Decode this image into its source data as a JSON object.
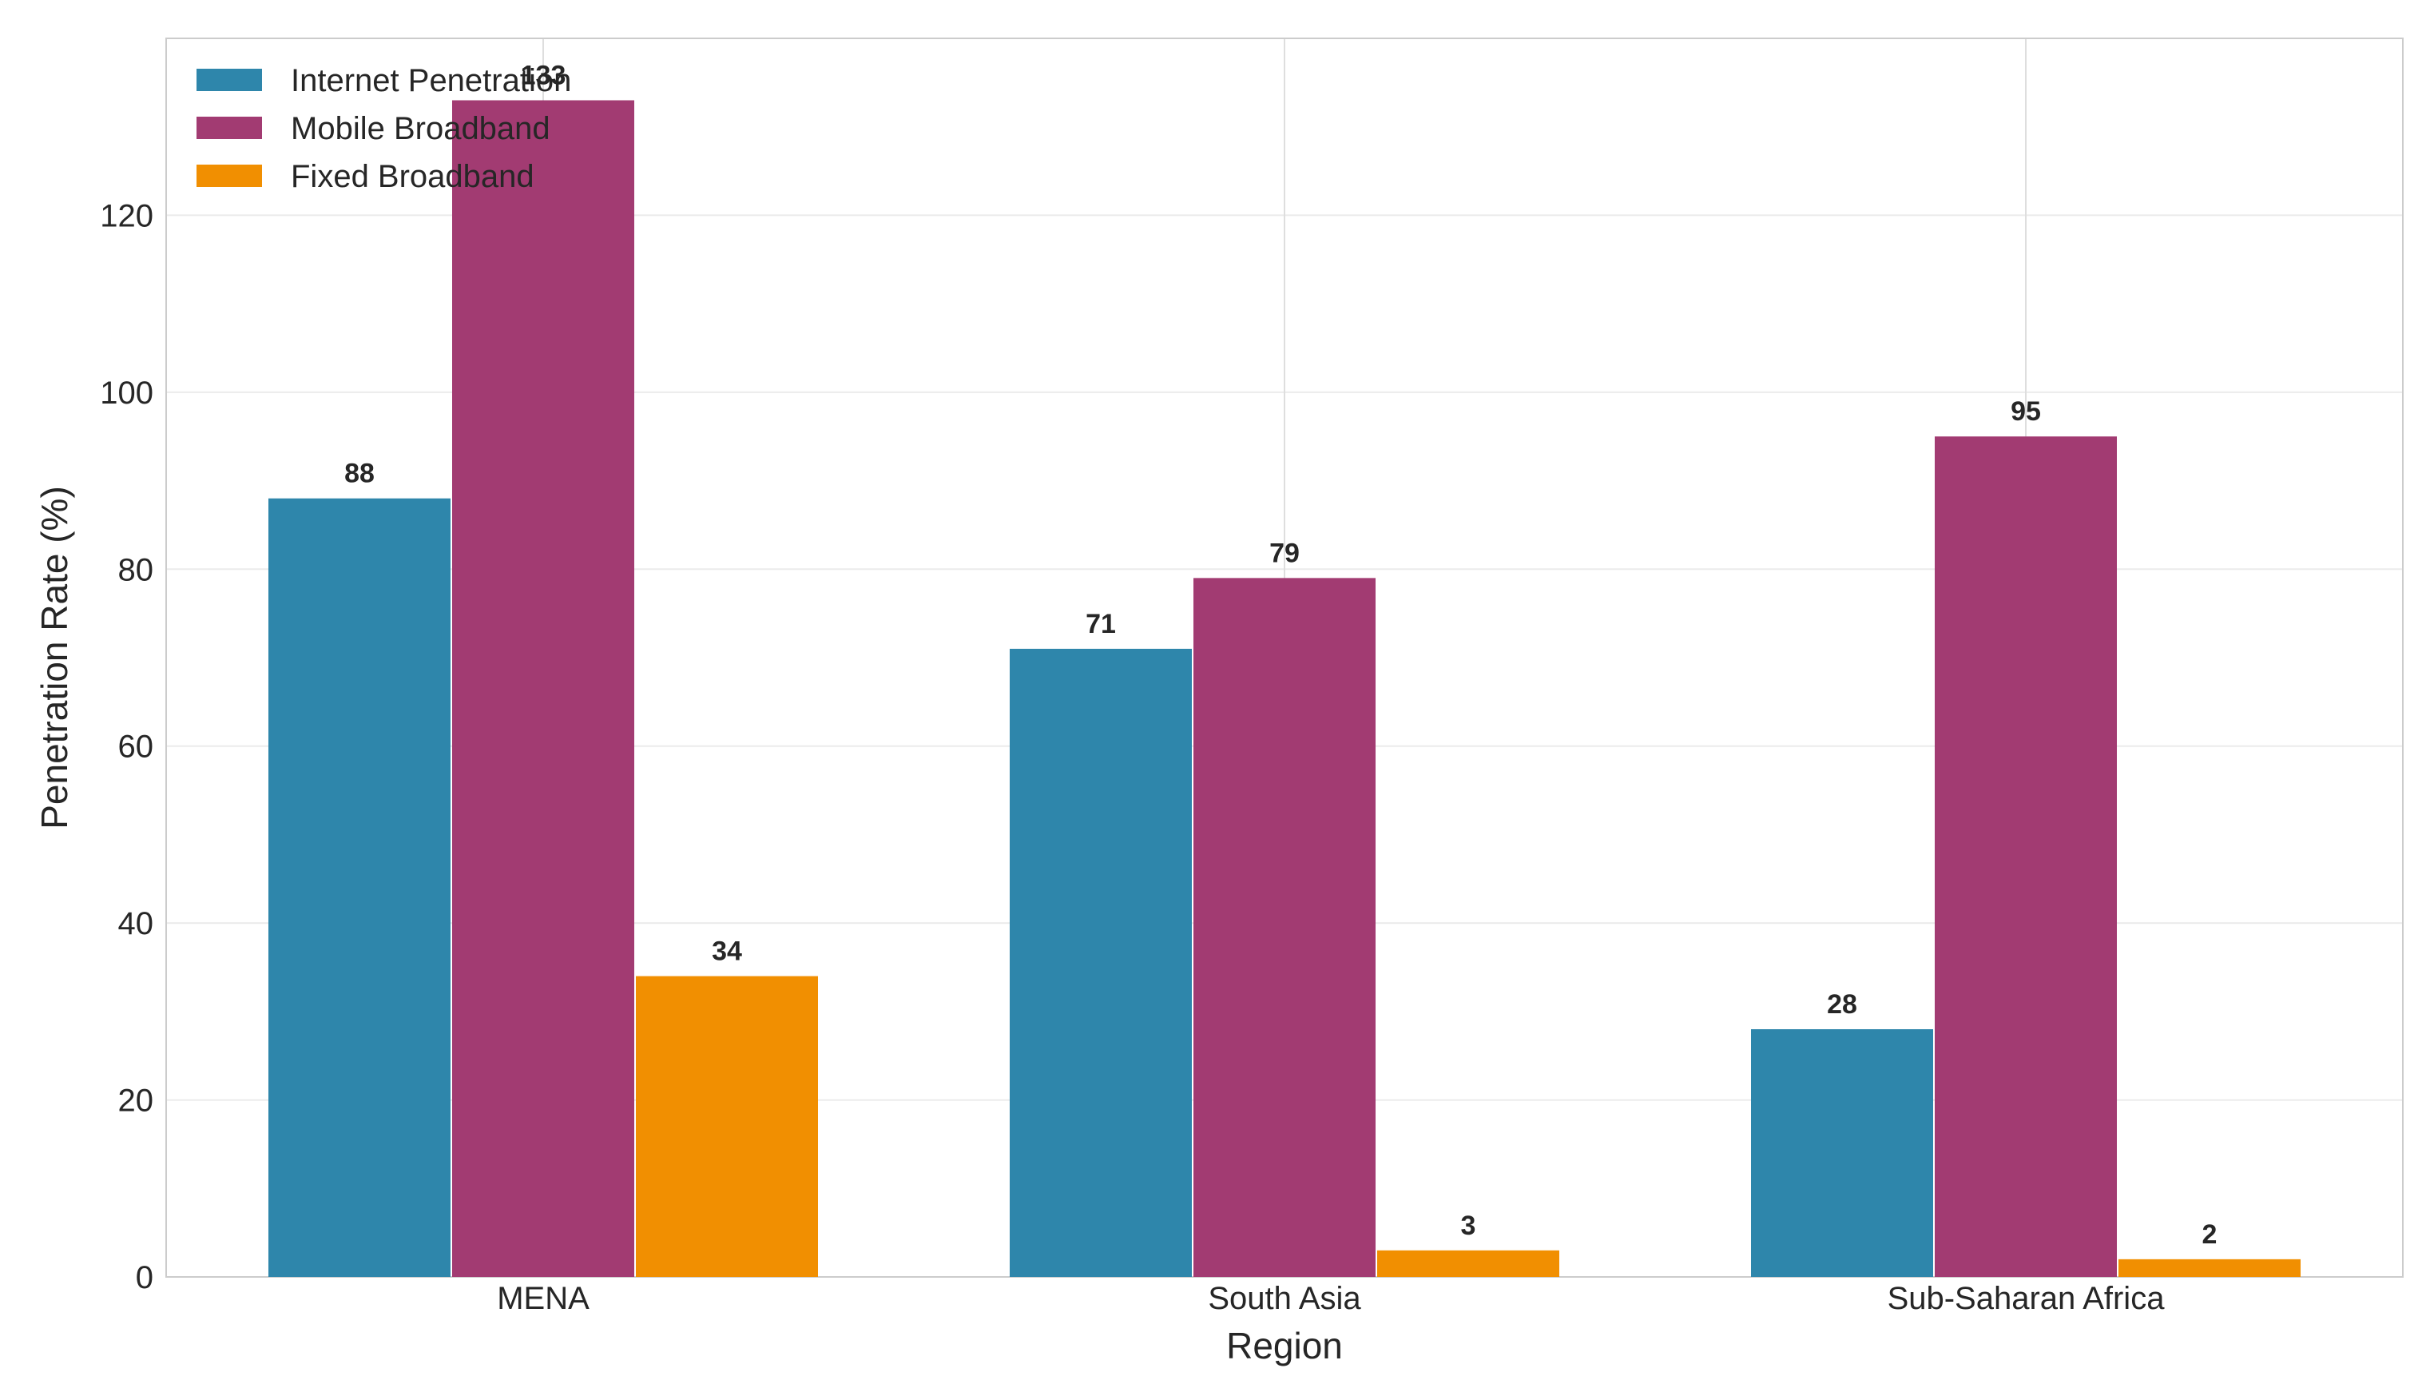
{
  "chart_data": {
    "type": "bar",
    "title": "",
    "xlabel": "Region",
    "ylabel": "Penetration Rate (%)",
    "categories": [
      "MENA",
      "South Asia",
      "Sub-Saharan Africa"
    ],
    "series": [
      {
        "name": "Internet Penetration",
        "color": "#2e86ab",
        "values": [
          88,
          71,
          28
        ],
        "labels": [
          "88",
          "71",
          "28"
        ]
      },
      {
        "name": "Mobile Broadband",
        "color": "#a23b72",
        "values": [
          133,
          79,
          95
        ],
        "labels": [
          "133",
          "79",
          "95"
        ]
      },
      {
        "name": "Fixed Broadband",
        "color": "#f18f01",
        "values": [
          34,
          3,
          2
        ],
        "labels": [
          "34",
          "3",
          "2"
        ]
      }
    ],
    "ylim": [
      0,
      140
    ],
    "yticks": [
      0,
      20,
      40,
      60,
      80,
      100,
      120
    ],
    "ytick_labels": [
      "0",
      "20",
      "40",
      "60",
      "80",
      "100",
      "120"
    ],
    "grid": true,
    "legend": "top-left"
  }
}
